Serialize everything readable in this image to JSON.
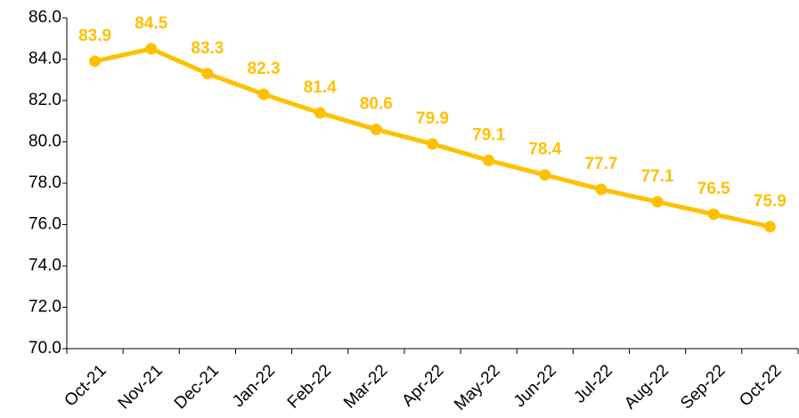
{
  "chart_data": {
    "type": "line",
    "categories": [
      "Oct-21",
      "Nov-21",
      "Dec-21",
      "Jan-22",
      "Feb-22",
      "Mar-22",
      "Apr-22",
      "May-22",
      "Jun-22",
      "Jul-22",
      "Aug-22",
      "Sep-22",
      "Oct-22"
    ],
    "series": [
      {
        "color": "#FFC000",
        "values": [
          83.9,
          84.5,
          83.3,
          82.3,
          81.4,
          80.6,
          79.9,
          79.1,
          78.4,
          77.7,
          77.1,
          76.5,
          75.9
        ]
      }
    ],
    "ylim": [
      70,
      86
    ],
    "yticks": [
      {
        "value": 70,
        "label": "70.0"
      },
      {
        "value": 72,
        "label": "72.0"
      },
      {
        "value": 74,
        "label": "74.0"
      },
      {
        "value": 76,
        "label": "76.0"
      },
      {
        "value": 78,
        "label": "78.0"
      },
      {
        "value": 80,
        "label": "80.0"
      },
      {
        "value": 82,
        "label": "82.0"
      },
      {
        "value": 84,
        "label": "84.0"
      },
      {
        "value": 86,
        "label": "86.0"
      }
    ],
    "grid": false
  }
}
